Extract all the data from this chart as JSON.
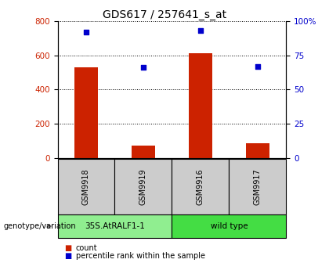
{
  "title": "GDS617 / 257641_s_at",
  "samples": [
    "GSM9918",
    "GSM9919",
    "GSM9916",
    "GSM9917"
  ],
  "counts": [
    530,
    70,
    610,
    85
  ],
  "percentile_ranks": [
    92,
    66,
    93,
    67
  ],
  "group1_label": "35S.AtRALF1-1",
  "group2_label": "wild type",
  "group1_color": "#90ee90",
  "group2_color": "#44dd44",
  "left_yticks": [
    0,
    200,
    400,
    600,
    800
  ],
  "right_yticks": [
    0,
    25,
    50,
    75,
    100
  ],
  "right_yticklabels": [
    "0",
    "25",
    "50",
    "75",
    "100%"
  ],
  "left_ylim": [
    0,
    800
  ],
  "right_ylim": [
    0,
    100
  ],
  "bar_color": "#cc2200",
  "dot_color": "#0000cc",
  "bar_width": 0.4,
  "group_label": "genotype/variation",
  "legend_count_label": "count",
  "legend_pct_label": "percentile rank within the sample",
  "tick_label_color_left": "#cc2200",
  "tick_label_color_right": "#0000cc",
  "sample_box_color": "#cccccc",
  "title_fontsize": 10
}
